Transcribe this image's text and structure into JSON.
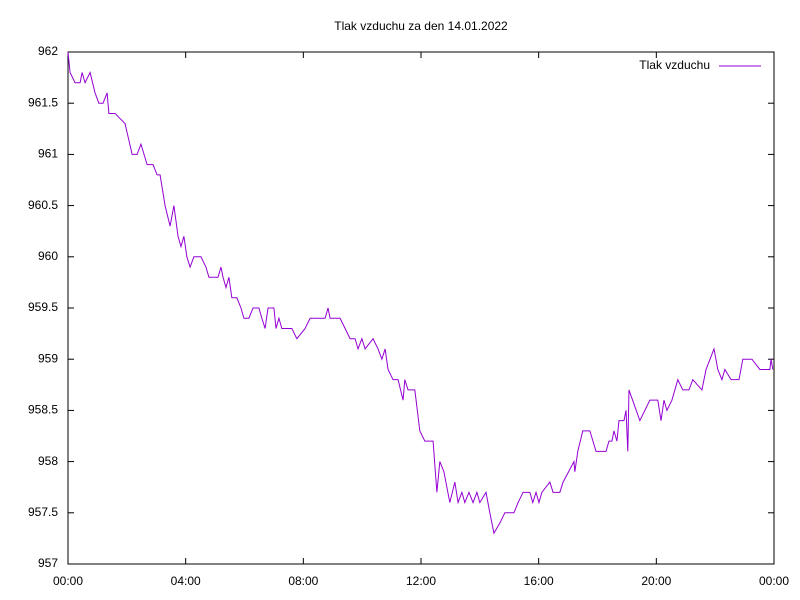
{
  "chart_data": {
    "type": "line",
    "title": "Tlak vzduchu za den 14.01.2022",
    "x": [
      0.0,
      0.07,
      0.24,
      0.41,
      0.48,
      0.58,
      0.75,
      0.92,
      1.05,
      1.19,
      1.33,
      1.39,
      1.6,
      1.94,
      2.18,
      2.35,
      2.48,
      2.69,
      2.89,
      3.03,
      3.13,
      3.3,
      3.47,
      3.6,
      3.74,
      3.84,
      3.94,
      4.04,
      4.15,
      4.28,
      4.52,
      4.69,
      4.79,
      5.1,
      5.2,
      5.27,
      5.37,
      5.47,
      5.57,
      5.74,
      5.88,
      5.98,
      6.15,
      6.29,
      6.49,
      6.59,
      6.7,
      6.8,
      7.0,
      7.07,
      7.17,
      7.27,
      7.61,
      7.78,
      8.06,
      8.23,
      8.74,
      8.84,
      8.91,
      9.25,
      9.42,
      9.59,
      9.76,
      9.86,
      9.99,
      10.1,
      10.37,
      10.54,
      10.67,
      10.78,
      10.88,
      11.05,
      11.22,
      11.39,
      11.45,
      11.56,
      11.79,
      11.96,
      12.13,
      12.41,
      12.54,
      12.64,
      12.78,
      12.98,
      13.15,
      13.26,
      13.39,
      13.49,
      13.63,
      13.77,
      13.9,
      14.0,
      14.21,
      14.34,
      14.48,
      14.68,
      14.85,
      15.16,
      15.3,
      15.47,
      15.7,
      15.8,
      15.91,
      16.01,
      16.11,
      16.38,
      16.49,
      16.72,
      16.83,
      17.2,
      17.23,
      17.33,
      17.5,
      17.74,
      17.95,
      18.29,
      18.39,
      18.49,
      18.56,
      18.66,
      18.73,
      18.9,
      18.97,
      19.03,
      19.07,
      19.44,
      19.78,
      20.05,
      20.16,
      20.26,
      20.36,
      20.53,
      20.73,
      20.9,
      21.11,
      21.24,
      21.55,
      21.69,
      21.96,
      22.09,
      22.23,
      22.33,
      22.54,
      22.81,
      22.94,
      23.25,
      23.52,
      23.86,
      23.9,
      23.96
    ],
    "series": [
      {
        "name": "Tlak vzduchu",
        "color": "#9400d3",
        "values": [
          962.0,
          961.8,
          961.7,
          961.7,
          961.8,
          961.7,
          961.8,
          961.6,
          961.5,
          961.5,
          961.6,
          961.4,
          961.4,
          961.3,
          961.0,
          961.0,
          961.1,
          960.9,
          960.9,
          960.8,
          960.8,
          960.5,
          960.3,
          960.5,
          960.2,
          960.1,
          960.2,
          960.0,
          959.9,
          960.0,
          960.0,
          959.9,
          959.8,
          959.8,
          959.9,
          959.8,
          959.7,
          959.8,
          959.6,
          959.6,
          959.5,
          959.4,
          959.4,
          959.5,
          959.5,
          959.4,
          959.3,
          959.5,
          959.5,
          959.3,
          959.4,
          959.3,
          959.3,
          959.2,
          959.3,
          959.4,
          959.4,
          959.5,
          959.4,
          959.4,
          959.3,
          959.2,
          959.2,
          959.1,
          959.2,
          959.1,
          959.2,
          959.1,
          959.0,
          959.1,
          958.9,
          958.8,
          958.8,
          958.6,
          958.8,
          958.7,
          958.7,
          958.3,
          958.2,
          958.2,
          957.7,
          958.0,
          957.9,
          957.6,
          957.8,
          957.6,
          957.7,
          957.6,
          957.7,
          957.6,
          957.7,
          957.6,
          957.7,
          957.5,
          957.3,
          957.4,
          957.5,
          957.5,
          957.6,
          957.7,
          957.7,
          957.6,
          957.7,
          957.6,
          957.7,
          957.8,
          957.7,
          957.7,
          957.8,
          958.0,
          957.9,
          958.1,
          958.3,
          958.3,
          958.1,
          958.1,
          958.2,
          958.2,
          958.3,
          958.2,
          958.4,
          958.4,
          958.5,
          958.1,
          958.7,
          958.4,
          958.6,
          958.6,
          958.4,
          958.6,
          958.5,
          958.6,
          958.8,
          958.7,
          958.7,
          958.8,
          958.7,
          958.9,
          959.1,
          958.9,
          958.8,
          958.9,
          958.8,
          958.8,
          959.0,
          959.0,
          958.9,
          958.9,
          959.0,
          958.9
        ]
      }
    ],
    "xlim": [
      0,
      24
    ],
    "xticks": [
      {
        "value": 0,
        "label": "00:00"
      },
      {
        "value": 4,
        "label": "04:00"
      },
      {
        "value": 8,
        "label": "08:00"
      },
      {
        "value": 12,
        "label": "12:00"
      },
      {
        "value": 16,
        "label": "16:00"
      },
      {
        "value": 20,
        "label": "20:00"
      },
      {
        "value": 24,
        "label": "00:00"
      }
    ],
    "ylim": [
      957,
      962
    ],
    "yticks": [
      957,
      957.5,
      958,
      958.5,
      959,
      959.5,
      960,
      960.5,
      961,
      961.5,
      962
    ],
    "grid": false,
    "legend": "top-right"
  }
}
